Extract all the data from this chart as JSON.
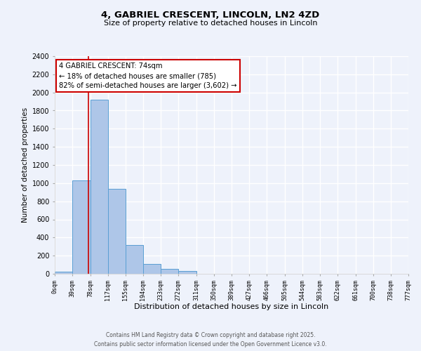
{
  "title_line1": "4, GABRIEL CRESCENT, LINCOLN, LN2 4ZD",
  "title_line2": "Size of property relative to detached houses in Lincoln",
  "xlabel": "Distribution of detached houses by size in Lincoln",
  "ylabel": "Number of detached properties",
  "bin_edges": [
    0,
    39,
    78,
    117,
    155,
    194,
    233,
    272,
    311,
    350,
    389,
    427,
    466,
    505,
    544,
    583,
    622,
    661,
    700,
    738,
    777
  ],
  "bin_labels": [
    "0sqm",
    "39sqm",
    "78sqm",
    "117sqm",
    "155sqm",
    "194sqm",
    "233sqm",
    "272sqm",
    "311sqm",
    "350sqm",
    "389sqm",
    "427sqm",
    "466sqm",
    "505sqm",
    "544sqm",
    "583sqm",
    "622sqm",
    "661sqm",
    "700sqm",
    "738sqm",
    "777sqm"
  ],
  "bar_heights": [
    20,
    1030,
    1920,
    940,
    320,
    110,
    55,
    30,
    0,
    0,
    0,
    0,
    0,
    0,
    0,
    0,
    0,
    0,
    0,
    0
  ],
  "bar_color": "#aec6e8",
  "bar_edge_color": "#5a9fd4",
  "property_line_x": 74,
  "property_label": "4 GABRIEL CRESCENT: 74sqm",
  "pct_smaller": 18,
  "count_smaller": 785,
  "pct_larger": 82,
  "count_larger": 3602,
  "annotation_box_color": "#cc0000",
  "vline_color": "#cc0000",
  "ylim": [
    0,
    2400
  ],
  "yticks": [
    0,
    200,
    400,
    600,
    800,
    1000,
    1200,
    1400,
    1600,
    1800,
    2000,
    2200,
    2400
  ],
  "background_color": "#eef2fb",
  "grid_color": "#ffffff",
  "footer_line1": "Contains HM Land Registry data © Crown copyright and database right 2025.",
  "footer_line2": "Contains public sector information licensed under the Open Government Licence v3.0."
}
